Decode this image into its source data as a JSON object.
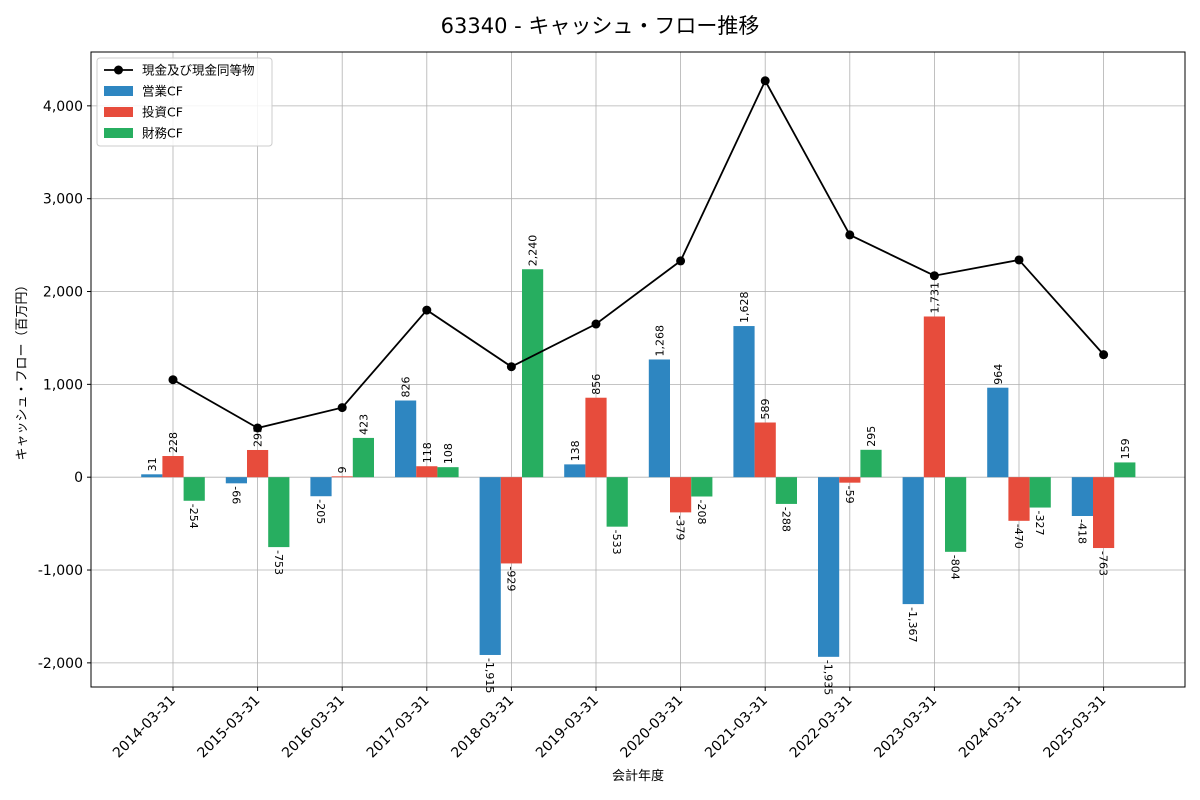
{
  "chart_data": {
    "type": "bar",
    "title": "63340 - キャッシュ・フロー推移",
    "xlabel": "会計年度",
    "ylabel": "キャッシュ・フロー（百万円）",
    "categories": [
      "2014-03-31",
      "2015-03-31",
      "2016-03-31",
      "2017-03-31",
      "2018-03-31",
      "2019-03-31",
      "2020-03-31",
      "2021-03-31",
      "2022-03-31",
      "2023-03-31",
      "2024-03-31",
      "2025-03-31"
    ],
    "series": [
      {
        "name": "営業CF",
        "type": "bar",
        "color": "#2e86c1",
        "values": [
          31,
          -66,
          -205,
          826,
          -1915,
          138,
          1268,
          1628,
          -1935,
          -1367,
          964,
          -418
        ],
        "labels": [
          "31",
          "-66",
          "-205",
          "826",
          "-1,915",
          "138",
          "1,268",
          "1,628",
          "-1,935",
          "-1,367",
          "964",
          "-418"
        ]
      },
      {
        "name": "投資CF",
        "type": "bar",
        "color": "#e74c3c",
        "values": [
          228,
          293,
          9,
          118,
          -929,
          856,
          -379,
          589,
          -59,
          1731,
          -470,
          -763
        ],
        "labels": [
          "228",
          "293",
          "9",
          "118",
          "-929",
          "856",
          "-379",
          "589",
          "-59",
          "1,731",
          "-470",
          "-763"
        ]
      },
      {
        "name": "財務CF",
        "type": "bar",
        "color": "#27ae60",
        "values": [
          -254,
          -753,
          423,
          108,
          2240,
          -533,
          -208,
          -288,
          295,
          -804,
          -327,
          159
        ],
        "labels": [
          "-254",
          "-753",
          "423",
          "108",
          "2,240",
          "-533",
          "-208",
          "-288",
          "295",
          "-804",
          "-327",
          "159"
        ]
      },
      {
        "name": "現金及び現金同等物",
        "type": "line",
        "color": "#000000",
        "values": [
          1050,
          530,
          750,
          1800,
          1190,
          1650,
          2330,
          4270,
          2610,
          2170,
          2340,
          1320
        ]
      }
    ],
    "yticks": [
      -2000,
      -1000,
      0,
      1000,
      2000,
      3000,
      4000
    ],
    "ytick_labels": [
      "-2,000",
      "-1,000",
      "0",
      "1,000",
      "2,000",
      "3,000",
      "4,000"
    ],
    "ylim": [
      -2260,
      4580
    ],
    "grid": true,
    "legend_position": "top-left"
  }
}
